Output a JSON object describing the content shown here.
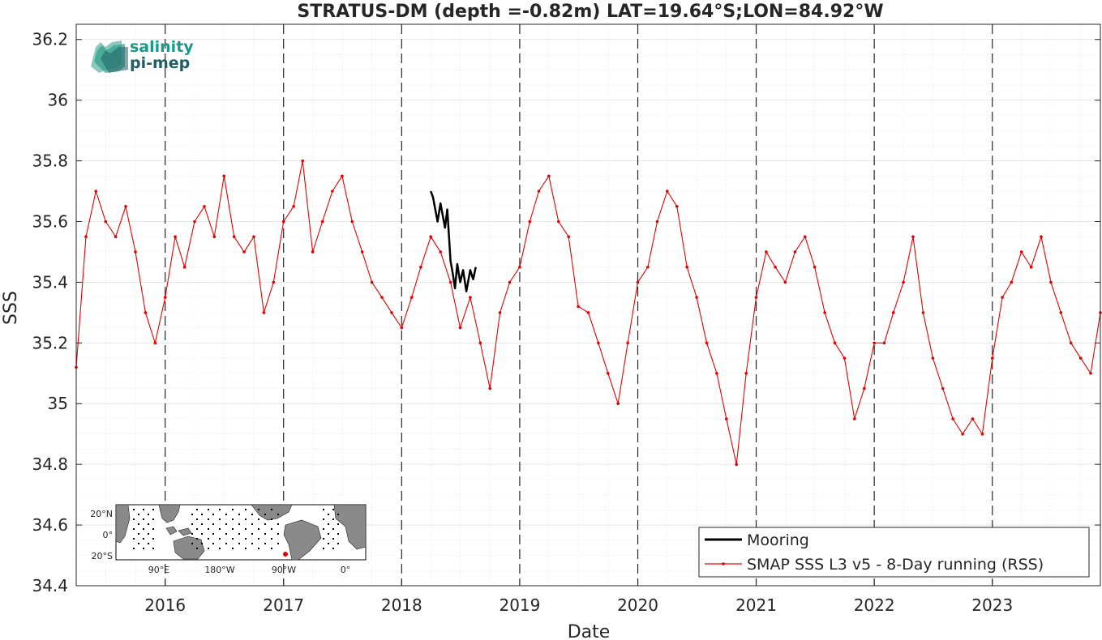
{
  "chart_data": {
    "type": "line",
    "title": "STRATUS-DM (depth =-0.82m) LAT=19.64°S;LON=84.92°W",
    "xlabel": "Date",
    "ylabel": "SSS",
    "xlim": [
      "2015-04-01",
      "2023-12-01"
    ],
    "ylim": [
      34.4,
      36.25
    ],
    "x_ticks": [
      "2016",
      "2017",
      "2018",
      "2019",
      "2020",
      "2021",
      "2022",
      "2023"
    ],
    "x_tick_dates": [
      "2016-01-01",
      "2017-01-01",
      "2018-01-01",
      "2019-01-01",
      "2020-01-01",
      "2021-01-01",
      "2022-01-01",
      "2023-01-01"
    ],
    "y_ticks": [
      34.4,
      34.6,
      34.8,
      35,
      35.2,
      35.4,
      35.6,
      35.8,
      36,
      36.2
    ],
    "y_tick_labels": [
      "34.4",
      "34.6",
      "34.8",
      "35",
      "35.2",
      "35.4",
      "35.6",
      "35.8",
      "36",
      "36.2"
    ],
    "grid": true,
    "year_markers": "dashed vertical lines at each year start",
    "legend_position": "bottom-right",
    "series": [
      {
        "name": "Mooring",
        "color": "#000000",
        "x": [
          "2018-04-01",
          "2018-04-08",
          "2018-04-15",
          "2018-04-22",
          "2018-05-01",
          "2018-05-08",
          "2018-05-15",
          "2018-05-22",
          "2018-06-01",
          "2018-06-08",
          "2018-06-15",
          "2018-06-22",
          "2018-07-01",
          "2018-07-10",
          "2018-07-20",
          "2018-08-01",
          "2018-08-10",
          "2018-08-18"
        ],
        "values": [
          35.7,
          35.68,
          35.64,
          35.6,
          35.66,
          35.62,
          35.58,
          35.64,
          35.47,
          35.43,
          35.38,
          35.46,
          35.4,
          35.44,
          35.37,
          35.44,
          35.41,
          35.45
        ]
      },
      {
        "name": "SMAP SSS L3 v5 - 8-Day running (RSS)",
        "color": "#e60000",
        "x": [
          "2015-04-01",
          "2015-05-01",
          "2015-06-01",
          "2015-07-01",
          "2015-08-01",
          "2015-09-01",
          "2015-10-01",
          "2015-11-01",
          "2015-12-01",
          "2016-01-01",
          "2016-02-01",
          "2016-03-01",
          "2016-04-01",
          "2016-05-01",
          "2016-06-01",
          "2016-07-01",
          "2016-08-01",
          "2016-09-01",
          "2016-10-01",
          "2016-11-01",
          "2016-12-01",
          "2017-01-01",
          "2017-02-01",
          "2017-03-01",
          "2017-04-01",
          "2017-05-01",
          "2017-06-01",
          "2017-07-01",
          "2017-08-01",
          "2017-09-01",
          "2017-10-01",
          "2017-11-01",
          "2017-12-01",
          "2018-01-01",
          "2018-02-01",
          "2018-03-01",
          "2018-04-01",
          "2018-05-01",
          "2018-06-01",
          "2018-07-01",
          "2018-08-01",
          "2018-09-01",
          "2018-10-01",
          "2018-11-01",
          "2018-12-01",
          "2019-01-01",
          "2019-02-01",
          "2019-03-01",
          "2019-04-01",
          "2019-05-01",
          "2019-06-01",
          "2019-07-01",
          "2019-08-01",
          "2019-09-01",
          "2019-10-01",
          "2019-11-01",
          "2019-12-01",
          "2020-01-01",
          "2020-02-01",
          "2020-03-01",
          "2020-04-01",
          "2020-05-01",
          "2020-06-01",
          "2020-07-01",
          "2020-08-01",
          "2020-09-01",
          "2020-10-01",
          "2020-11-01",
          "2020-12-01",
          "2021-01-01",
          "2021-02-01",
          "2021-03-01",
          "2021-04-01",
          "2021-05-01",
          "2021-06-01",
          "2021-07-01",
          "2021-08-01",
          "2021-09-01",
          "2021-10-01",
          "2021-11-01",
          "2021-12-01",
          "2022-01-01",
          "2022-02-01",
          "2022-03-01",
          "2022-04-01",
          "2022-05-01",
          "2022-06-01",
          "2022-07-01",
          "2022-08-01",
          "2022-09-01",
          "2022-10-01",
          "2022-11-01",
          "2022-12-01",
          "2023-01-01",
          "2023-02-01",
          "2023-03-01",
          "2023-04-01",
          "2023-05-01",
          "2023-06-01",
          "2023-07-01",
          "2023-08-01",
          "2023-09-01",
          "2023-10-01",
          "2023-11-01",
          "2023-12-01"
        ],
        "values": [
          35.12,
          35.55,
          35.7,
          35.6,
          35.55,
          35.65,
          35.5,
          35.3,
          35.2,
          35.35,
          35.55,
          35.45,
          35.6,
          35.65,
          35.55,
          35.75,
          35.55,
          35.5,
          35.55,
          35.3,
          35.4,
          35.6,
          35.65,
          35.8,
          35.5,
          35.6,
          35.7,
          35.75,
          35.6,
          35.5,
          35.4,
          35.35,
          35.3,
          35.25,
          35.35,
          35.45,
          35.55,
          35.5,
          35.4,
          35.25,
          35.35,
          35.2,
          35.05,
          35.3,
          35.4,
          35.45,
          35.6,
          35.7,
          35.75,
          35.6,
          35.55,
          35.32,
          35.3,
          35.2,
          35.1,
          35.0,
          35.2,
          35.4,
          35.45,
          35.6,
          35.7,
          35.65,
          35.45,
          35.35,
          35.2,
          35.1,
          34.95,
          34.8,
          35.1,
          35.35,
          35.5,
          35.45,
          35.4,
          35.5,
          35.55,
          35.45,
          35.3,
          35.2,
          35.15,
          34.95,
          35.05,
          35.2,
          35.2,
          35.3,
          35.4,
          35.55,
          35.3,
          35.15,
          35.05,
          34.95,
          34.9,
          34.95,
          34.9,
          35.15,
          35.35,
          35.4,
          35.5,
          35.45,
          35.55,
          35.4,
          35.3,
          35.2,
          35.15,
          35.1,
          35.3
        ]
      }
    ]
  },
  "logo": {
    "line1": "salinity",
    "line2": "pi-mep",
    "color": "#1a9a8a"
  },
  "inset_map": {
    "lat_labels": [
      "20°N",
      "0°",
      "20°S"
    ],
    "lon_labels": [
      "90°E",
      "180°W",
      "90°W",
      "0°"
    ],
    "marker_color": "#e60000"
  }
}
